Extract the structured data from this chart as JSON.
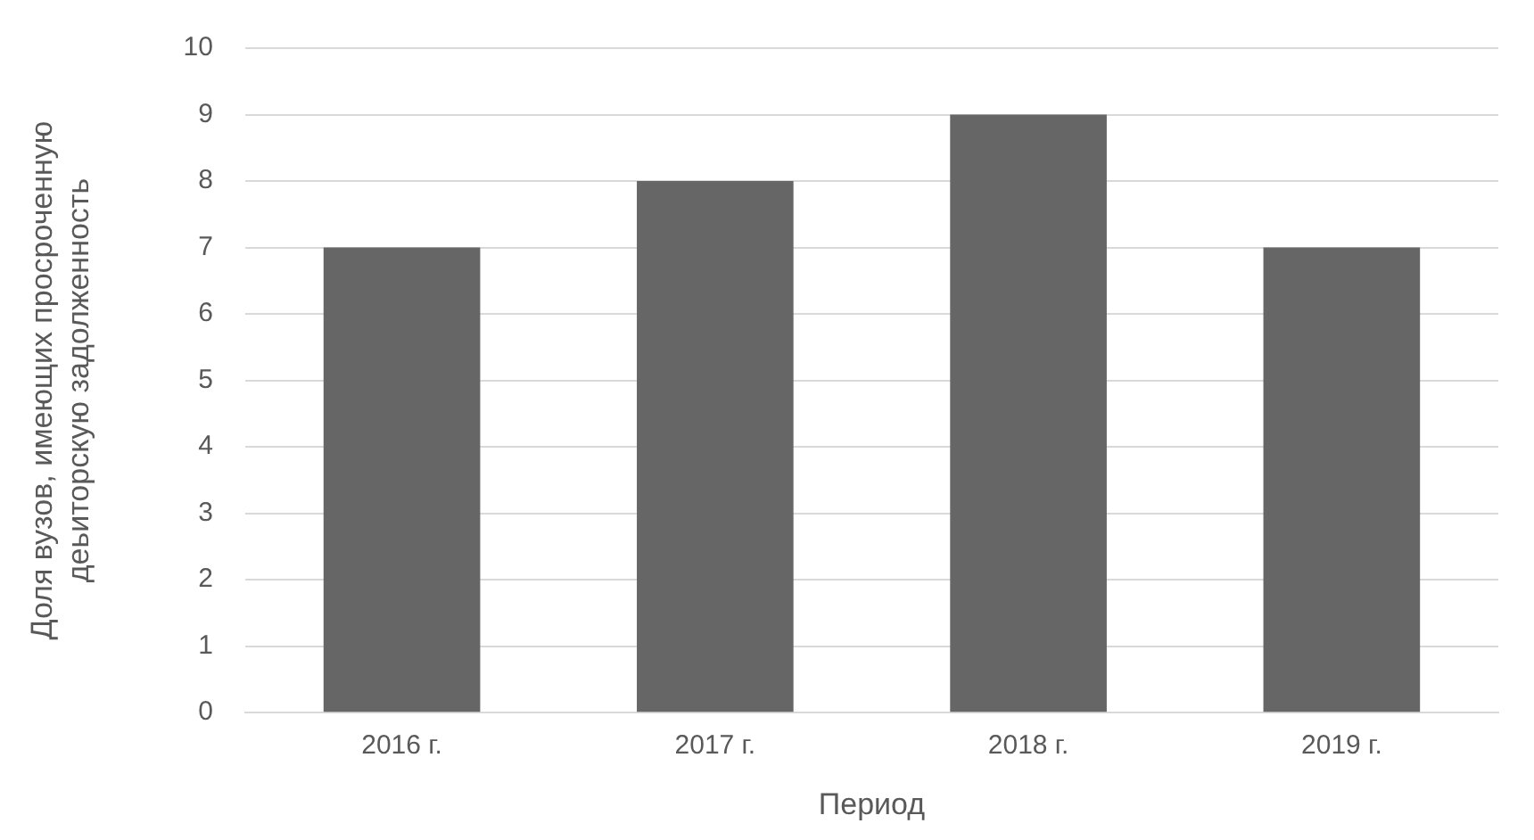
{
  "chart_data": {
    "type": "bar",
    "xlabel": "Период",
    "ylabel": "Доля вузов, имеющих просроченную\nдеьиторскую задолженность",
    "categories": [
      "2016 г.",
      "2017 г.",
      "2018 г.",
      "2019 г."
    ],
    "values": [
      7,
      8,
      9,
      7
    ],
    "color": "#666666",
    "ylim": [
      0,
      10
    ],
    "yticks": [
      0,
      1,
      2,
      3,
      4,
      5,
      6,
      7,
      8,
      9,
      10
    ],
    "grid": "y",
    "legend": false
  }
}
